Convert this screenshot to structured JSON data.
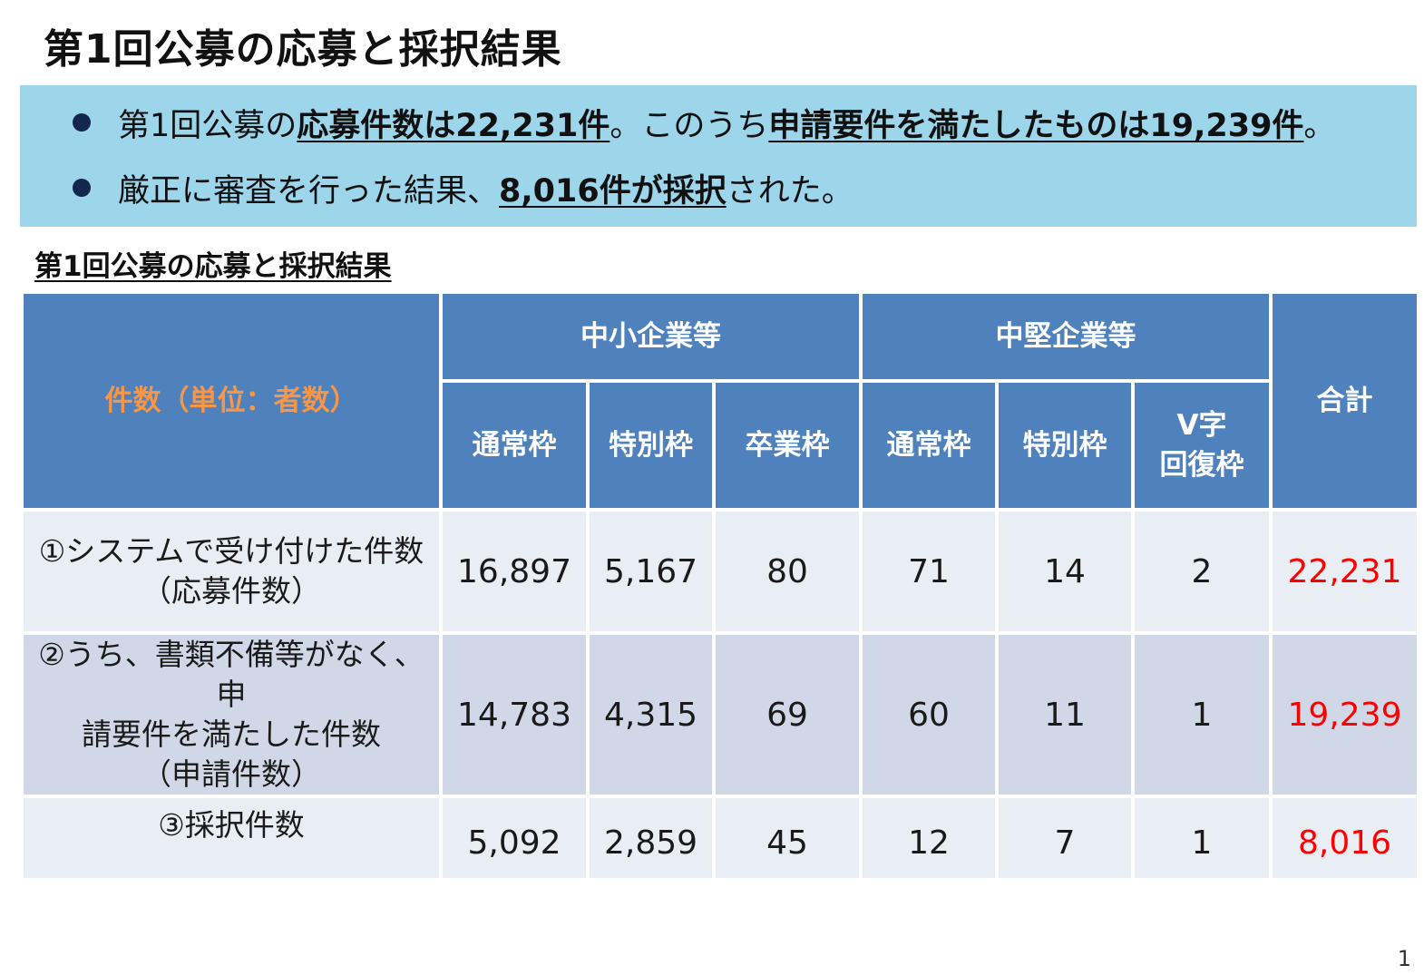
{
  "page_title": "第1回公募の応募と採択結果",
  "summary": {
    "line1": {
      "pre": "第1回公募の",
      "emph1": "応募件数は22,231件",
      "mid": "。このうち",
      "emph2": "申請要件を満たしたものは19,239件",
      "post": "。"
    },
    "line2": {
      "pre": "厳正に審査を行った結果、",
      "emph": "8,016件が採択",
      "post": "された。"
    }
  },
  "section_title": "第1回公募の応募と採択結果",
  "table": {
    "stub_header": "件数（単位：者数）",
    "group_headers": [
      "中小企業等",
      "中堅企業等"
    ],
    "total_header": "合計",
    "columns": [
      "通常枠",
      "特別枠",
      "卒業枠",
      "通常枠",
      "特別枠",
      "V字\n回復枠"
    ],
    "rows": [
      {
        "label": "①システムで受け付けた件数\n（応募件数）",
        "values": [
          "16,897",
          "5,167",
          "80",
          "71",
          "14",
          "2"
        ],
        "total": "22,231"
      },
      {
        "label": "②うち、書類不備等がなく、申\n請要件を満たした件数\n（申請件数）",
        "values": [
          "14,783",
          "4,315",
          "69",
          "60",
          "11",
          "1"
        ],
        "total": "19,239"
      },
      {
        "label": "③採択件数",
        "values": [
          "5,092",
          "2,859",
          "45",
          "12",
          "7",
          "1"
        ],
        "total": "8,016"
      }
    ]
  },
  "colors": {
    "summary_background": "#9dd5ea",
    "header_background": "#4f81bd",
    "stub_header_text": "#f79646",
    "row_light": "#e9edf4",
    "row_dark": "#d0d8e8",
    "total_text": "#ff0000",
    "bullet": "#12264e"
  },
  "slide_number": "1"
}
